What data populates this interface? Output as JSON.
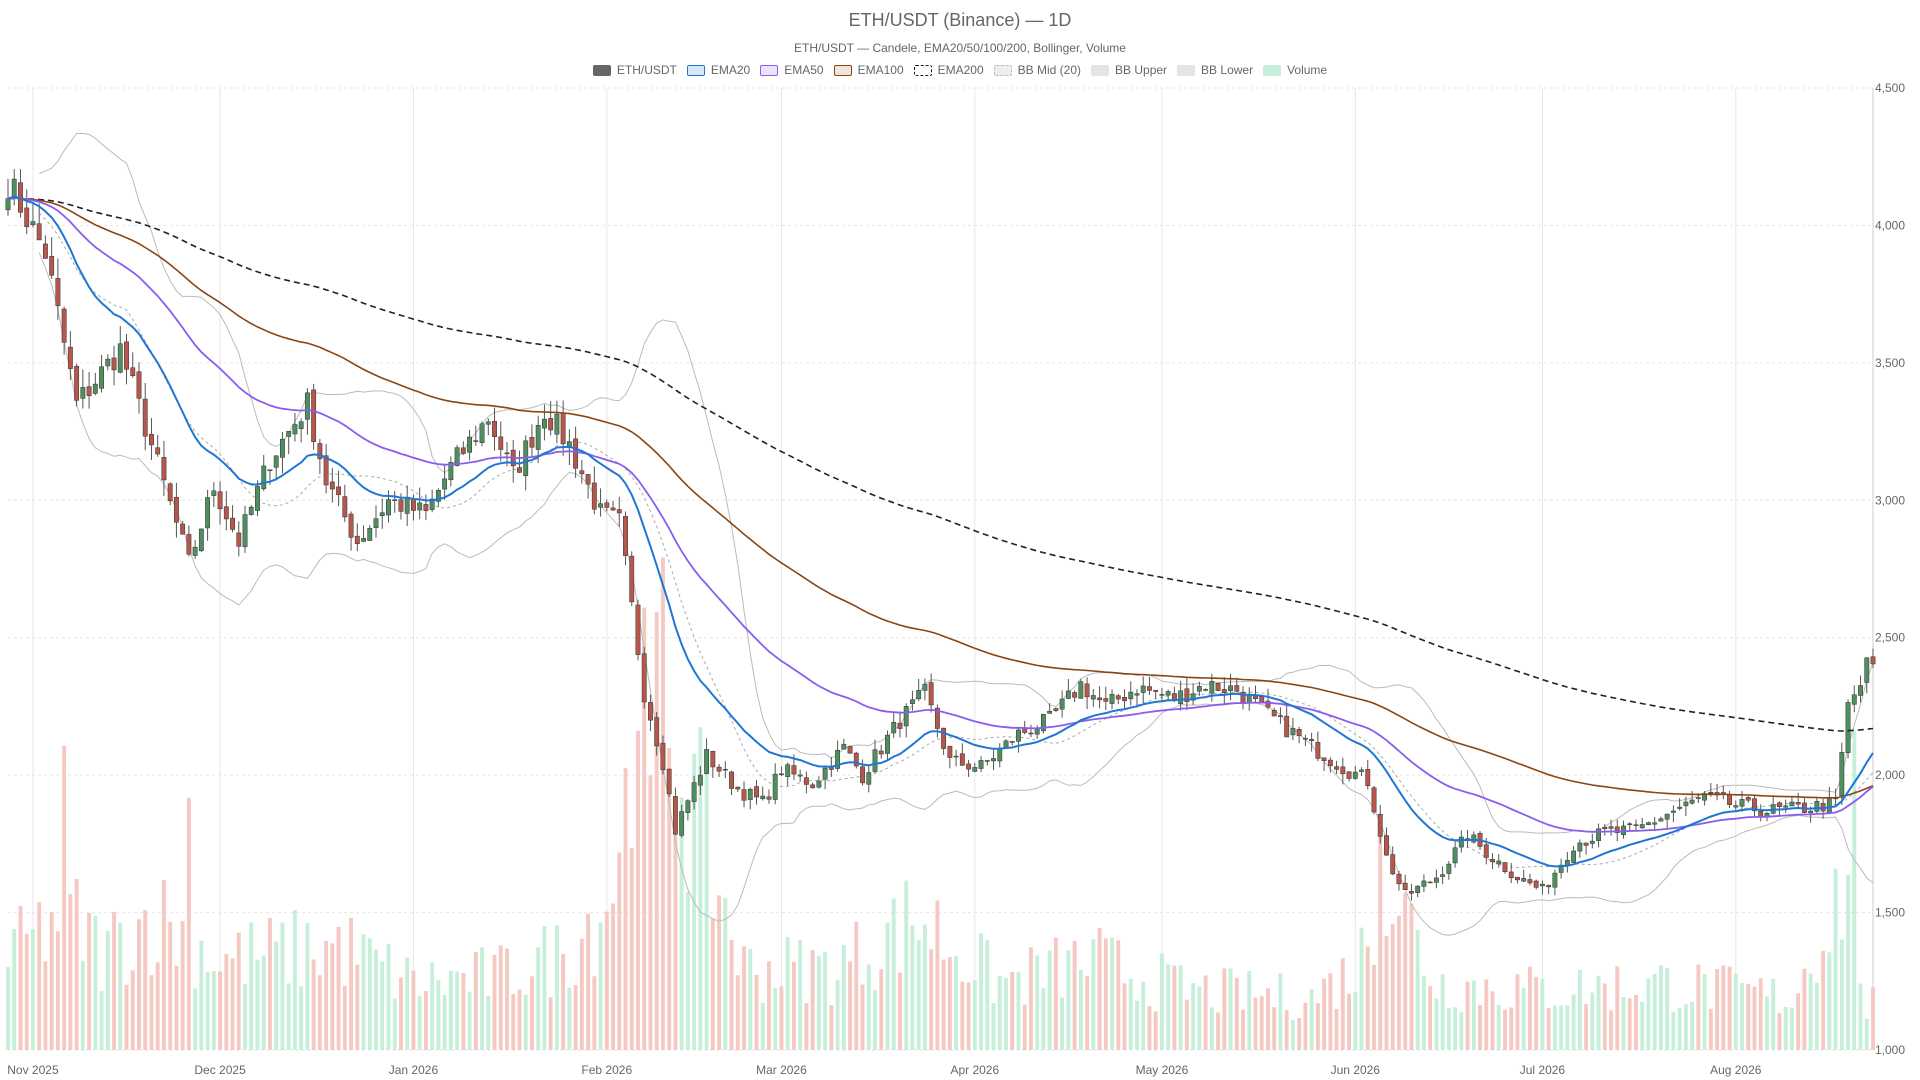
{
  "chart_data": {
    "type": "candlestick",
    "title": "ETH/USDT (Binance) — 1D",
    "subtitle": "ETH/USDT — Candele, EMA20/50/100/200, Bollinger, Volume",
    "x_tick_labels": [
      "Nov 2025",
      "Dec 2025",
      "Jan 2026",
      "Feb 2026",
      "Mar 2026",
      "Apr 2026",
      "May 2026",
      "Jun 2026",
      "Jul 2026",
      "Aug 2026"
    ],
    "y_tick_labels": [
      "1,000",
      "1,500",
      "2,000",
      "2,500",
      "3,000",
      "3,500",
      "4,000",
      "4,500"
    ],
    "ylim": [
      1000,
      4500
    ],
    "xlim": [
      "2025-10-28",
      "2026-08-23"
    ],
    "grid": true,
    "legend_position": "top-center",
    "legend": [
      {
        "label": "ETH/USDT",
        "fill": "#666666",
        "stroke": "#666666",
        "dashed": false
      },
      {
        "label": "EMA20",
        "fill": "#d6e8f8",
        "stroke": "#1f77d4",
        "dashed": false
      },
      {
        "label": "EMA50",
        "fill": "#ece4fb",
        "stroke": "#8a5cf0",
        "dashed": false
      },
      {
        "label": "EMA100",
        "fill": "#f1e4da",
        "stroke": "#8b4513",
        "dashed": false
      },
      {
        "label": "EMA200",
        "fill": "#ffffff",
        "stroke": "#222222",
        "dashed": true
      },
      {
        "label": "BB Mid (20)",
        "fill": "#eeeeee",
        "stroke": "#bbbbbb",
        "dashed": true
      },
      {
        "label": "BB Upper",
        "fill": "#e4e4e4",
        "stroke": "#e4e4e4",
        "dashed": false
      },
      {
        "label": "BB Lower",
        "fill": "#e4e4e4",
        "stroke": "#e4e4e4",
        "dashed": false
      },
      {
        "label": "Volume",
        "fill": "#c5efd9",
        "stroke": "#c5efd9",
        "dashed": false
      }
    ],
    "colors": {
      "up": "#4f8f5f",
      "down": "#b5574b",
      "volume_up": "#c5efd9",
      "volume_down": "#f6c8c2",
      "ema20": "#1f77d4",
      "ema50": "#8a5cf0",
      "ema100": "#8b4513",
      "ema200": "#222222",
      "bb_mid": "#aaaaaa",
      "bb_band": "#bbbbbb",
      "grid": "#e6e6e6",
      "axis": "#666666"
    },
    "close_anchors": [
      [
        "2025-10-28",
        4160
      ],
      [
        "2025-11-03",
        3900
      ],
      [
        "2025-11-08",
        3350
      ],
      [
        "2025-11-15",
        3550
      ],
      [
        "2025-11-20",
        3200
      ],
      [
        "2025-11-26",
        2770
      ],
      [
        "2025-11-30",
        3050
      ],
      [
        "2025-12-04",
        2850
      ],
      [
        "2025-12-09",
        3150
      ],
      [
        "2025-12-15",
        3350
      ],
      [
        "2025-12-18",
        3070
      ],
      [
        "2025-12-23",
        2850
      ],
      [
        "2025-12-28",
        3000
      ],
      [
        "2026-01-03",
        2950
      ],
      [
        "2026-01-07",
        3120
      ],
      [
        "2026-01-13",
        3300
      ],
      [
        "2026-01-17",
        3090
      ],
      [
        "2026-01-22",
        3330
      ],
      [
        "2026-01-26",
        3200
      ],
      [
        "2026-01-31",
        2950
      ],
      [
        "2026-02-03",
        2920
      ],
      [
        "2026-02-07",
        2300
      ],
      [
        "2026-02-10",
        2050
      ],
      [
        "2026-02-12",
        1800
      ],
      [
        "2026-02-17",
        2070
      ],
      [
        "2026-02-22",
        1950
      ],
      [
        "2026-02-26",
        1900
      ],
      [
        "2026-03-01",
        2020
      ],
      [
        "2026-03-06",
        1970
      ],
      [
        "2026-03-11",
        2100
      ],
      [
        "2026-03-14",
        2000
      ],
      [
        "2026-03-20",
        2200
      ],
      [
        "2026-03-24",
        2300
      ],
      [
        "2026-03-28",
        2050
      ],
      [
        "2026-04-02",
        2030
      ],
      [
        "2026-04-08",
        2150
      ],
      [
        "2026-04-13",
        2200
      ],
      [
        "2026-04-18",
        2330
      ],
      [
        "2026-04-22",
        2250
      ],
      [
        "2026-04-27",
        2320
      ],
      [
        "2026-05-03",
        2280
      ],
      [
        "2026-05-08",
        2330
      ],
      [
        "2026-05-13",
        2310
      ],
      [
        "2026-05-18",
        2220
      ],
      [
        "2026-05-24",
        2120
      ],
      [
        "2026-05-30",
        2030
      ],
      [
        "2026-06-03",
        1980
      ],
      [
        "2026-06-06",
        1700
      ],
      [
        "2026-06-09",
        1560
      ],
      [
        "2026-06-14",
        1630
      ],
      [
        "2026-06-19",
        1780
      ],
      [
        "2026-06-23",
        1700
      ],
      [
        "2026-06-27",
        1630
      ],
      [
        "2026-07-01",
        1580
      ],
      [
        "2026-07-06",
        1750
      ],
      [
        "2026-07-11",
        1790
      ],
      [
        "2026-07-16",
        1800
      ],
      [
        "2026-07-22",
        1870
      ],
      [
        "2026-07-27",
        1920
      ],
      [
        "2026-08-01",
        1890
      ],
      [
        "2026-08-06",
        1870
      ],
      [
        "2026-08-12",
        1880
      ],
      [
        "2026-08-17",
        1900
      ],
      [
        "2026-08-19",
        2250
      ],
      [
        "2026-08-21",
        2330
      ],
      [
        "2026-08-22",
        2400
      ]
    ],
    "volume_ylim": [
      0,
      3500000
    ],
    "volume_anchors": [
      [
        "2025-10-28",
        600000
      ],
      [
        "2025-11-05",
        900000
      ],
      [
        "2025-11-06",
        2400000
      ],
      [
        "2025-11-07",
        900000
      ],
      [
        "2025-11-12",
        650000
      ],
      [
        "2025-11-20",
        900000
      ],
      [
        "2025-11-25",
        800000
      ],
      [
        "2025-12-01",
        600000
      ],
      [
        "2025-12-10",
        650000
      ],
      [
        "2025-12-20",
        700000
      ],
      [
        "2026-01-01",
        450000
      ],
      [
        "2026-01-15",
        500000
      ],
      [
        "2026-01-25",
        650000
      ],
      [
        "2026-02-01",
        1000000
      ],
      [
        "2026-02-06",
        2000000
      ],
      [
        "2026-02-10",
        2400000
      ],
      [
        "2026-02-16",
        1500000
      ],
      [
        "2026-02-23",
        550000
      ],
      [
        "2026-03-10",
        550000
      ],
      [
        "2026-03-23",
        900000
      ],
      [
        "2026-04-05",
        450000
      ],
      [
        "2026-04-20",
        600000
      ],
      [
        "2026-05-05",
        400000
      ],
      [
        "2026-05-25",
        350000
      ],
      [
        "2026-06-01",
        550000
      ],
      [
        "2026-06-07",
        1100000
      ],
      [
        "2026-06-14",
        450000
      ],
      [
        "2026-07-01",
        400000
      ],
      [
        "2026-07-20",
        450000
      ],
      [
        "2026-08-10",
        350000
      ],
      [
        "2026-08-19",
        1200000
      ],
      [
        "2026-08-22",
        300000
      ]
    ],
    "volume_spikes": [
      [
        "2025-11-06",
        2050000
      ],
      [
        "2025-11-26",
        1700000
      ],
      [
        "2026-02-06",
        2150000
      ],
      [
        "2026-02-08",
        1850000
      ],
      [
        "2026-02-09",
        2950000
      ],
      [
        "2026-06-05",
        1580000
      ],
      [
        "2026-08-20",
        2150000
      ]
    ]
  }
}
